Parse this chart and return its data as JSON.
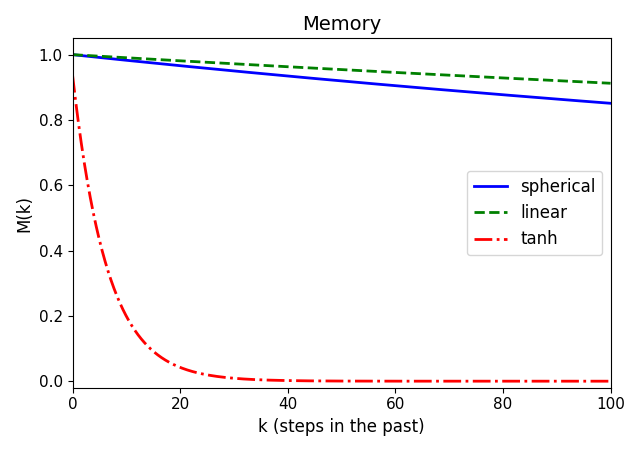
{
  "title": "Memory",
  "xlabel": "k (steps in the past)",
  "ylabel": "M(k)",
  "xlim": [
    0,
    100
  ],
  "ylim": [
    -0.02,
    1.05
  ],
  "series": [
    {
      "label": "spherical",
      "color": "#0000ff",
      "linestyle": "solid",
      "linewidth": 2.0,
      "type": "spherical",
      "alpha_param": 0.00175
    },
    {
      "label": "linear",
      "color": "#008000",
      "linestyle": "dashed",
      "linewidth": 2.0,
      "type": "linear",
      "alpha_param": 0.00096
    },
    {
      "label": "tanh",
      "color": "#ff0000",
      "linestyle": "dashdot",
      "linewidth": 2.0,
      "type": "tanh",
      "a_param": 0.938,
      "b_param": 0.155
    }
  ],
  "legend_loc": "center right",
  "title_fontsize": 14,
  "axis_label_fontsize": 12,
  "tick_fontsize": 11
}
